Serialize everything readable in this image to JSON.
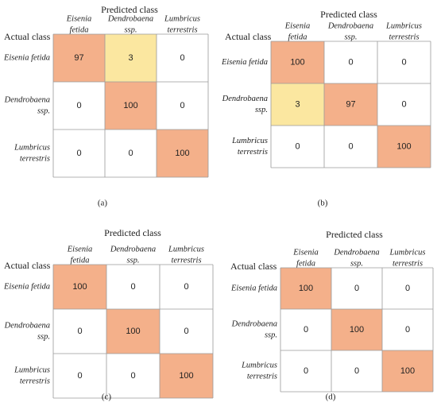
{
  "colors": {
    "high": "#f4b08a",
    "low": "#fbe7a0",
    "zero": "#ffffff",
    "grid": "#9a9a9a",
    "text": "#222222"
  },
  "figure": {
    "predicted_label": "Predicted class",
    "actual_label": "Actual class"
  },
  "chart_data": [
    {
      "type": "heatmap",
      "panel": "(a)",
      "col_labels": [
        [
          "Eisenia",
          "fetida"
        ],
        [
          "Dendrobaena",
          "ssp."
        ],
        [
          "Lumbricus",
          "terrestris"
        ]
      ],
      "row_labels": [
        [
          "Eisenia fetida"
        ],
        [
          "Dendrobaena",
          "ssp."
        ],
        [
          "Lumbricus",
          "terrestris"
        ]
      ],
      "values": [
        [
          97,
          3,
          0
        ],
        [
          0,
          100,
          0
        ],
        [
          0,
          0,
          100
        ]
      ],
      "xlabel": "Predicted class",
      "ylabel": "Actual class"
    },
    {
      "type": "heatmap",
      "panel": "(b)",
      "col_labels": [
        [
          "Eisenia",
          "fetida"
        ],
        [
          "Dendrobaena",
          "ssp."
        ],
        [
          "Lumbricus",
          "terrestris"
        ]
      ],
      "row_labels": [
        [
          "Eisenia fetida"
        ],
        [
          "Dendrobaena",
          "ssp."
        ],
        [
          "Lumbricus",
          "terrestris"
        ]
      ],
      "values": [
        [
          100,
          0,
          0
        ],
        [
          3,
          97,
          0
        ],
        [
          0,
          0,
          100
        ]
      ],
      "xlabel": "Predicted class",
      "ylabel": "Actual class"
    },
    {
      "type": "heatmap",
      "panel": "(c)",
      "col_labels": [
        [
          "Eisenia",
          "fetida"
        ],
        [
          "Dendrobaena",
          "ssp."
        ],
        [
          "Lumbricus",
          "terrestris"
        ]
      ],
      "row_labels": [
        [
          "Eisenia fetida"
        ],
        [
          "Dendrobaena",
          "ssp."
        ],
        [
          "Lumbricus",
          "terrestris"
        ]
      ],
      "values": [
        [
          100,
          0,
          0
        ],
        [
          0,
          100,
          0
        ],
        [
          0,
          0,
          100
        ]
      ],
      "xlabel": "Predicted class",
      "ylabel": "Actual class"
    },
    {
      "type": "heatmap",
      "panel": "(d)",
      "col_labels": [
        [
          "Eisenia",
          "fetida"
        ],
        [
          "Dendrobaena",
          "ssp."
        ],
        [
          "Lumbricus",
          "terrestris"
        ]
      ],
      "row_labels": [
        [
          "Eisenia fetida"
        ],
        [
          "Dendrobaena",
          "ssp."
        ],
        [
          "Lumbricus",
          "terrestris"
        ]
      ],
      "values": [
        [
          100,
          0,
          0
        ],
        [
          0,
          100,
          0
        ],
        [
          0,
          0,
          100
        ]
      ],
      "xlabel": "Predicted class",
      "ylabel": "Actual class"
    }
  ]
}
